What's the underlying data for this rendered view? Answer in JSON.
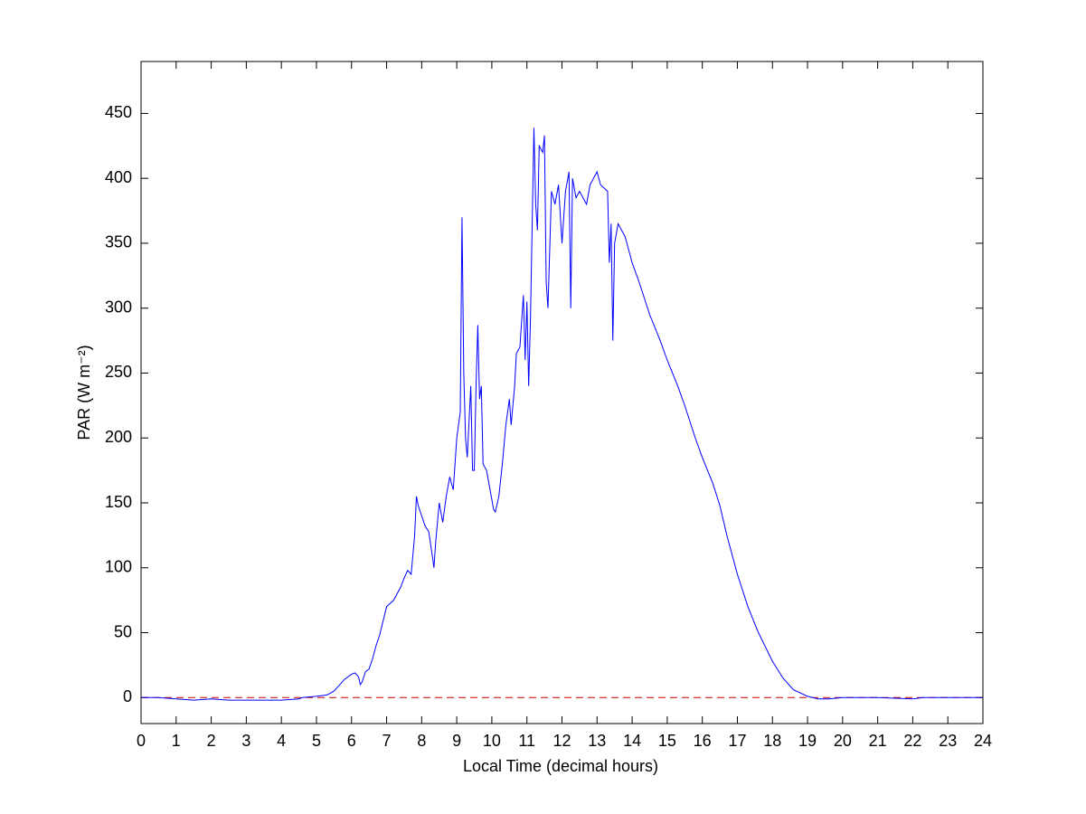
{
  "chart_data": {
    "type": "line",
    "x_label": "Local Time (decimal hours)",
    "y_label": "PAR (W m⁻²)",
    "x": [
      0,
      0.5,
      1,
      1.5,
      2,
      2.5,
      3,
      3.5,
      4,
      4.5,
      4.6,
      5,
      5.3,
      5.5,
      5.8,
      6,
      6.1,
      6.2,
      6.25,
      6.3,
      6.4,
      6.5,
      6.6,
      6.7,
      6.8,
      7,
      7.2,
      7.4,
      7.5,
      7.6,
      7.7,
      7.8,
      7.85,
      7.9,
      8,
      8.1,
      8.2,
      8.3,
      8.35,
      8.4,
      8.5,
      8.6,
      8.7,
      8.8,
      8.9,
      9,
      9.1,
      9.15,
      9.2,
      9.25,
      9.3,
      9.4,
      9.45,
      9.5,
      9.55,
      9.6,
      9.65,
      9.7,
      9.75,
      9.85,
      9.95,
      10.05,
      10.1,
      10.2,
      10.3,
      10.4,
      10.5,
      10.55,
      10.65,
      10.7,
      10.8,
      10.9,
      10.95,
      11,
      11.05,
      11.1,
      11.2,
      11.25,
      11.3,
      11.35,
      11.45,
      11.5,
      11.55,
      11.6,
      11.7,
      11.8,
      11.9,
      12,
      12.1,
      12.2,
      12.25,
      12.3,
      12.4,
      12.5,
      12.7,
      12.8,
      13,
      13.1,
      13.3,
      13.35,
      13.4,
      13.45,
      13.5,
      13.6,
      13.8,
      14,
      14.2,
      14.5,
      14.8,
      15,
      15.3,
      15.5,
      15.8,
      16,
      16.3,
      16.5,
      16.7,
      17,
      17.3,
      17.6,
      18,
      18.3,
      18.6,
      19,
      19.3,
      19.6,
      20,
      21,
      22,
      22.3,
      23,
      24
    ],
    "series": [
      {
        "color": "#0000ff",
        "values": [
          0,
          0,
          -1,
          -2,
          -1,
          -2,
          -2,
          -2,
          -2,
          -1,
          0,
          1,
          2,
          5,
          14,
          18,
          19,
          16,
          10,
          12,
          20,
          22,
          30,
          40,
          48,
          70,
          75,
          85,
          92,
          98,
          95,
          125,
          155,
          148,
          140,
          132,
          128,
          110,
          100,
          120,
          150,
          135,
          155,
          170,
          160,
          200,
          220,
          370,
          250,
          200,
          185,
          240,
          175,
          175,
          240,
          287,
          230,
          240,
          180,
          175,
          160,
          145,
          143,
          155,
          180,
          210,
          230,
          210,
          240,
          265,
          270,
          310,
          260,
          305,
          240,
          290,
          439,
          380,
          360,
          425,
          420,
          433,
          320,
          300,
          390,
          380,
          395,
          350,
          390,
          405,
          300,
          400,
          385,
          390,
          380,
          395,
          405,
          395,
          390,
          335,
          365,
          275,
          350,
          365,
          355,
          335,
          320,
          295,
          275,
          260,
          240,
          225,
          200,
          185,
          165,
          148,
          125,
          95,
          70,
          50,
          28,
          15,
          6,
          1,
          -1,
          -1,
          0,
          0,
          -1,
          0,
          0,
          0
        ]
      }
    ],
    "reference_line": {
      "value": 0,
      "color": "#cc0000"
    },
    "xlim": [
      0,
      24
    ],
    "xticks": [
      0,
      1,
      2,
      3,
      4,
      5,
      6,
      7,
      8,
      9,
      10,
      11,
      12,
      13,
      14,
      15,
      16,
      17,
      18,
      19,
      20,
      21,
      22,
      23,
      24
    ],
    "ylim": [
      -20,
      490
    ],
    "yticks": [
      0,
      50,
      100,
      150,
      200,
      250,
      300,
      350,
      400,
      450
    ],
    "grid": false
  }
}
